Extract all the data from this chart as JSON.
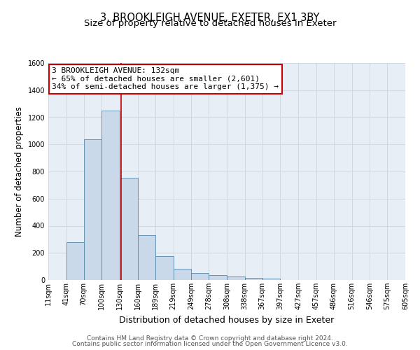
{
  "title": "3, BROOKLEIGH AVENUE, EXETER, EX1 3BY",
  "subtitle": "Size of property relative to detached houses in Exeter",
  "xlabel": "Distribution of detached houses by size in Exeter",
  "ylabel": "Number of detached properties",
  "bin_labels": [
    "11sqm",
    "41sqm",
    "70sqm",
    "100sqm",
    "130sqm",
    "160sqm",
    "189sqm",
    "219sqm",
    "249sqm",
    "278sqm",
    "308sqm",
    "338sqm",
    "367sqm",
    "397sqm",
    "427sqm",
    "457sqm",
    "486sqm",
    "516sqm",
    "546sqm",
    "575sqm",
    "605sqm"
  ],
  "bin_edges": [
    11,
    41,
    70,
    100,
    130,
    160,
    189,
    219,
    249,
    278,
    308,
    338,
    367,
    397,
    427,
    457,
    486,
    516,
    546,
    575,
    605
  ],
  "bar_heights": [
    0,
    280,
    1035,
    1250,
    755,
    330,
    175,
    85,
    50,
    35,
    25,
    15,
    10,
    0,
    0,
    0,
    0,
    0,
    0,
    0
  ],
  "bar_color": "#c9d9ea",
  "bar_edge_color": "#5588aa",
  "grid_color": "#d0d8e0",
  "bg_color": "#e8eef5",
  "vline_x": 132,
  "vline_color": "#cc0000",
  "annotation_line1": "3 BROOKLEIGH AVENUE: 132sqm",
  "annotation_line2": "← 65% of detached houses are smaller (2,601)",
  "annotation_line3": "34% of semi-detached houses are larger (1,375) →",
  "annotation_box_color": "#cc0000",
  "ylim": [
    0,
    1600
  ],
  "yticks": [
    0,
    200,
    400,
    600,
    800,
    1000,
    1200,
    1400,
    1600
  ],
  "footer_line1": "Contains HM Land Registry data © Crown copyright and database right 2024.",
  "footer_line2": "Contains public sector information licensed under the Open Government Licence v3.0.",
  "title_fontsize": 10.5,
  "subtitle_fontsize": 9.5,
  "ylabel_fontsize": 8.5,
  "xlabel_fontsize": 9,
  "annotation_fontsize": 8,
  "footer_fontsize": 6.5,
  "tick_fontsize": 7
}
